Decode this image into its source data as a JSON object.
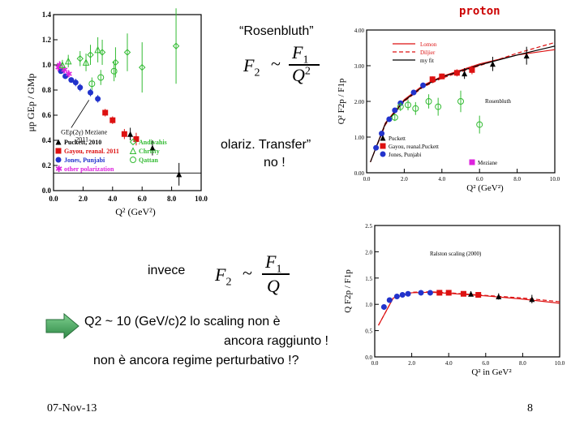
{
  "slide": {
    "rosenbluth": "“Rosenbluth”",
    "polariz": "olariz. Transfer”",
    "no": "no !",
    "invece": "invece",
    "q2_line": "Q2 ~ 10 (GeV/c)2  lo scaling non è",
    "line2": "ancora raggiunto !",
    "line3": "non è ancora regime perturbativo !?",
    "date": "07-Nov-13",
    "page": "8",
    "proton": "proton"
  },
  "formulas": {
    "f1": {
      "lhs": "F",
      "lhs_sub": "2",
      "rel": "~",
      "num": "F",
      "num_sub": "1",
      "den": "Q",
      "den_sup": "2"
    },
    "f2": {
      "lhs": "F",
      "lhs_sub": "2",
      "rel": "~",
      "num": "F",
      "num_sub": "1",
      "den": "Q"
    }
  },
  "colors": {
    "black": "#000000",
    "red": "#dd1111",
    "blue": "#2233cc",
    "magenta": "#dd22dd",
    "green": "#33bb33",
    "dark_red": "#cc0000",
    "arrow_green": "#3fa05a"
  },
  "chart_data": [
    {
      "type": "scatter",
      "ylabel": "μp GEp / GMp",
      "xlabel": "Q² (GeV²)",
      "xlim": [
        0,
        10.0
      ],
      "ylim": [
        0,
        1.4
      ],
      "xticks": [
        "0.0",
        "2.0",
        "4.0",
        "6.0",
        "8.0",
        "10.0"
      ],
      "yticks": [
        "0.0",
        "0.2",
        "0.4",
        "0.6",
        "0.8",
        "1.0",
        "1.2",
        "1.4"
      ],
      "annotation": "GEp(2γ) Meziane 2011",
      "legend": [
        "Puckett, 2010",
        "Gayou, reanal. 2011",
        "Jones, Punjabi",
        "other polarization",
        "Andivahis",
        "Christy",
        "Qattan"
      ],
      "series": [
        {
          "name": "Puckett, 2010",
          "marker": "triangle",
          "color": "#000000",
          "x": [
            5.2,
            6.7,
            8.5
          ],
          "y": [
            0.45,
            0.34,
            0.13
          ],
          "err": [
            0.05,
            0.06,
            0.09
          ]
        },
        {
          "name": "Gayou, reanal. 2011",
          "marker": "square",
          "color": "#dd1111",
          "x": [
            3.5,
            4.0,
            4.8,
            5.6
          ],
          "y": [
            0.62,
            0.56,
            0.45,
            0.41
          ],
          "err": [
            0.03,
            0.03,
            0.04,
            0.05
          ]
        },
        {
          "name": "Jones, Punjabi",
          "marker": "circle",
          "color": "#2233cc",
          "x": [
            0.5,
            0.8,
            1.2,
            1.5,
            1.8,
            2.5,
            3.0
          ],
          "y": [
            0.95,
            0.91,
            0.88,
            0.86,
            0.82,
            0.78,
            0.73
          ],
          "err": [
            0.02,
            0.02,
            0.02,
            0.03,
            0.03,
            0.03,
            0.03
          ]
        },
        {
          "name": "other polarization",
          "marker": "star",
          "color": "#dd22dd",
          "x": [
            0.3,
            0.4,
            0.7,
            1.0
          ],
          "y": [
            0.98,
            1.0,
            0.96,
            0.93
          ],
          "err": [
            0.03,
            0.03,
            0.03,
            0.03
          ]
        },
        {
          "name": "Andivahis",
          "marker": "diamond",
          "color": "#33bb33",
          "x": [
            1.8,
            2.5,
            3.3,
            4.2,
            5.0,
            6.0,
            8.3
          ],
          "y": [
            1.05,
            1.08,
            1.1,
            1.02,
            1.1,
            0.98,
            1.15
          ],
          "err": [
            0.06,
            0.08,
            0.1,
            0.12,
            0.15,
            0.2,
            0.3
          ]
        },
        {
          "name": "Christy",
          "marker": "triangle-open",
          "color": "#33bb33",
          "x": [
            0.6,
            1.0,
            2.2,
            3.0
          ],
          "y": [
            1.0,
            1.03,
            1.02,
            1.12
          ],
          "err": [
            0.04,
            0.05,
            0.07,
            0.1
          ]
        },
        {
          "name": "Qattan",
          "marker": "circle-open",
          "color": "#33bb33",
          "x": [
            2.6,
            3.2,
            4.1
          ],
          "y": [
            0.85,
            0.9,
            0.95
          ],
          "err": [
            0.05,
            0.06,
            0.08
          ]
        }
      ]
    },
    {
      "type": "scatter",
      "ylabel": "Q² F2p / F1p",
      "xlabel": "Q² (GeV²)",
      "xlim": [
        0,
        10.0
      ],
      "ylim": [
        0,
        4.0
      ],
      "xticks": [
        "0.0",
        "2.0",
        "4.0",
        "6.0",
        "8.0",
        "10.0"
      ],
      "yticks": [
        "0.00",
        "1.00",
        "2.00",
        "3.00",
        "4.00"
      ],
      "legend_top": [
        "Lomon",
        "Diljier",
        "my fit"
      ],
      "legend_bottom": [
        "Puckett",
        "Gayou, reanal.Puckett",
        "Jones, Punjabi",
        "Meziane"
      ],
      "inline_label": "Rosenbluth",
      "series": [
        {
          "name": "Puckett",
          "marker": "triangle",
          "color": "#000000",
          "x": [
            5.2,
            6.7,
            8.5
          ],
          "y": [
            2.78,
            3.05,
            3.28
          ],
          "err": [
            0.15,
            0.2,
            0.25
          ]
        },
        {
          "name": "Gayou",
          "marker": "square",
          "color": "#dd1111",
          "x": [
            3.5,
            4.0,
            4.8,
            5.6
          ],
          "y": [
            2.62,
            2.7,
            2.8,
            2.88
          ],
          "err": [
            0.08,
            0.08,
            0.1,
            0.12
          ]
        },
        {
          "name": "Jones",
          "marker": "circle",
          "color": "#2233cc",
          "x": [
            0.5,
            0.8,
            1.2,
            1.5,
            1.8,
            2.5,
            3.0
          ],
          "y": [
            0.7,
            1.1,
            1.5,
            1.75,
            1.95,
            2.25,
            2.45
          ],
          "err": [
            0.05,
            0.05,
            0.05,
            0.06,
            0.06,
            0.07,
            0.08
          ]
        },
        {
          "name": "Rosenbluth",
          "marker": "circle-open",
          "color": "#33bb33",
          "x": [
            1.5,
            1.8,
            2.2,
            2.6,
            3.3,
            3.8,
            5.0,
            6.0
          ],
          "y": [
            1.55,
            1.85,
            1.9,
            1.8,
            2.0,
            1.85,
            2.0,
            1.35
          ],
          "err": [
            0.1,
            0.12,
            0.15,
            0.18,
            0.2,
            0.25,
            0.3,
            0.25
          ]
        }
      ],
      "curves": [
        {
          "name": "Lomon",
          "style": "solid-red",
          "x": [
            0.2,
            1,
            2,
            3,
            4,
            6,
            8,
            10
          ],
          "y": [
            0.3,
            1.4,
            2.05,
            2.45,
            2.7,
            3.05,
            3.3,
            3.45
          ]
        },
        {
          "name": "Diljier",
          "style": "dashed-red",
          "x": [
            0.2,
            1,
            2,
            3,
            4,
            6,
            8,
            10
          ],
          "y": [
            0.3,
            1.35,
            2.0,
            2.4,
            2.65,
            3.0,
            3.35,
            3.65
          ]
        },
        {
          "name": "my fit",
          "style": "solid-black",
          "x": [
            0.2,
            1,
            2,
            3,
            4,
            6,
            8,
            10
          ],
          "y": [
            0.3,
            1.38,
            2.02,
            2.42,
            2.68,
            3.02,
            3.3,
            3.55
          ]
        }
      ]
    },
    {
      "type": "scatter",
      "ylabel": "Q F2p / F1p",
      "xlabel": "Q² in GeV²",
      "xlim": [
        0,
        10.0
      ],
      "ylim": [
        0,
        2.5
      ],
      "xticks": [
        "0.0",
        "2.0",
        "4.0",
        "6.0",
        "8.0",
        "10.0"
      ],
      "yticks": [
        "0.0",
        "0.5",
        "1.0",
        "1.5",
        "2.0",
        "2.5"
      ],
      "title": "Ralston scaling (2000)",
      "series": [
        {
          "name": "Puckett",
          "marker": "triangle",
          "color": "#000000",
          "x": [
            5.2,
            6.7,
            8.5
          ],
          "y": [
            1.2,
            1.15,
            1.1
          ],
          "err": [
            0.05,
            0.06,
            0.08
          ]
        },
        {
          "name": "Gayou",
          "marker": "square",
          "color": "#dd1111",
          "x": [
            3.5,
            4.0,
            4.8,
            5.6
          ],
          "y": [
            1.22,
            1.22,
            1.2,
            1.18
          ],
          "err": [
            0.03,
            0.03,
            0.04,
            0.05
          ]
        },
        {
          "name": "Jones",
          "marker": "circle",
          "color": "#2233cc",
          "x": [
            0.5,
            0.8,
            1.2,
            1.5,
            1.8,
            2.5,
            3.0
          ],
          "y": [
            0.95,
            1.08,
            1.15,
            1.18,
            1.2,
            1.22,
            1.22
          ],
          "err": [
            0.03,
            0.03,
            0.03,
            0.03,
            0.03,
            0.04,
            0.04
          ]
        }
      ],
      "curves": [
        {
          "name": "fit1",
          "style": "dashed-red",
          "x": [
            0.2,
            1,
            2,
            3,
            4,
            6,
            8,
            10
          ],
          "y": [
            0.6,
            1.12,
            1.23,
            1.24,
            1.22,
            1.17,
            1.12,
            1.05
          ]
        },
        {
          "name": "fit2",
          "style": "solid-red",
          "x": [
            0.2,
            1,
            2,
            3,
            4,
            6,
            8,
            10
          ],
          "y": [
            0.6,
            1.12,
            1.22,
            1.23,
            1.21,
            1.16,
            1.1,
            1.02
          ]
        }
      ]
    }
  ]
}
